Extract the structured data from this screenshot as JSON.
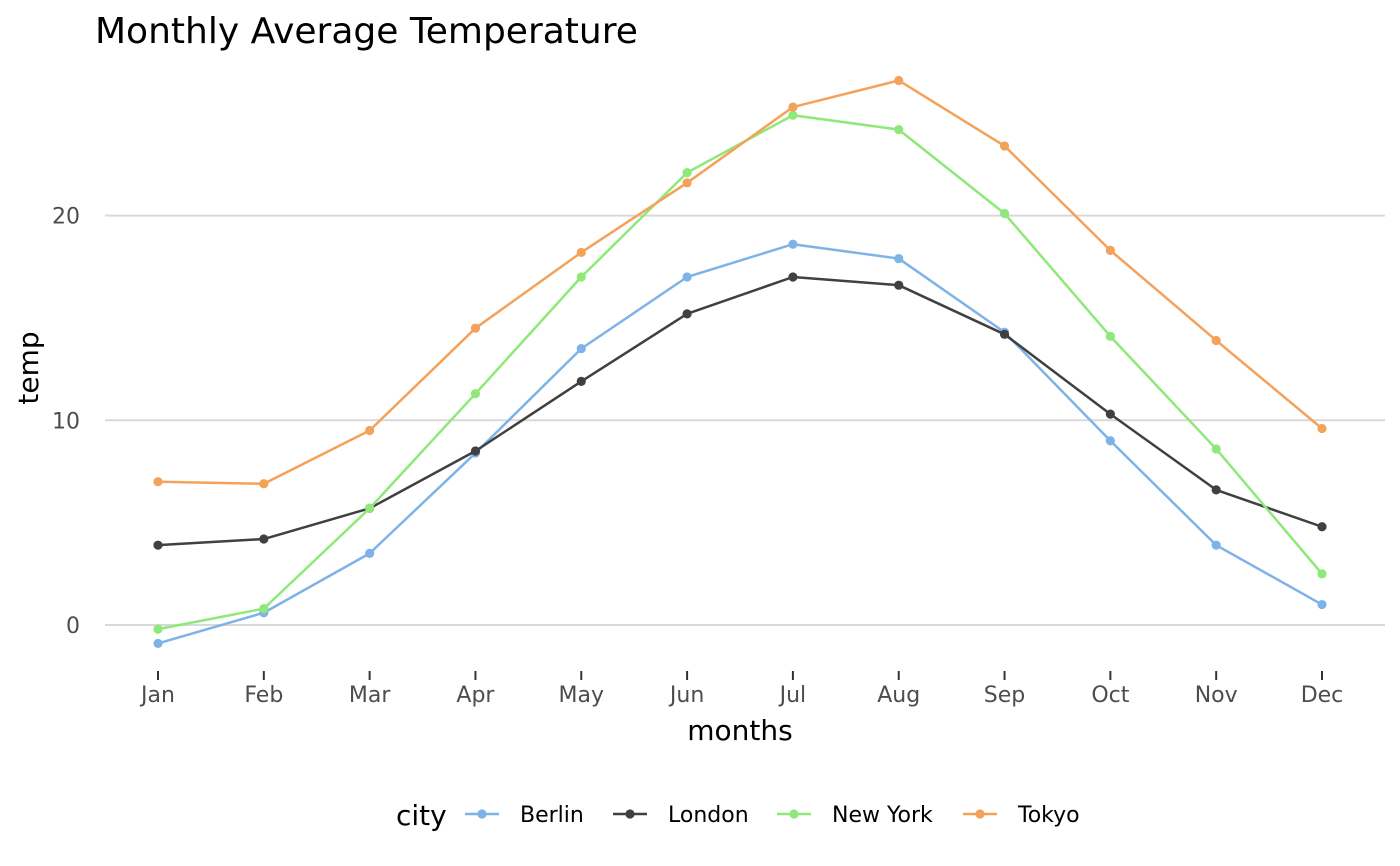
{
  "chart_data": {
    "type": "line",
    "title": "Monthly Average Temperature",
    "xlabel": "months",
    "ylabel": "temp",
    "categories": [
      "Jan",
      "Feb",
      "Mar",
      "Apr",
      "May",
      "Jun",
      "Jul",
      "Aug",
      "Sep",
      "Oct",
      "Nov",
      "Dec"
    ],
    "ylim": [
      -2.1,
      27.6
    ],
    "yticks": [
      0,
      10,
      20
    ],
    "grid": "horizontal-major",
    "legend": {
      "title": "city",
      "position": "bottom"
    },
    "series": [
      {
        "name": "Berlin",
        "color": "#7eb3e8",
        "values": [
          -0.9,
          0.6,
          3.5,
          8.4,
          13.5,
          17.0,
          18.6,
          17.9,
          14.3,
          9.0,
          3.9,
          1.0
        ]
      },
      {
        "name": "London",
        "color": "#404040",
        "values": [
          3.9,
          4.2,
          5.7,
          8.5,
          11.9,
          15.2,
          17.0,
          16.6,
          14.2,
          10.3,
          6.6,
          4.8
        ]
      },
      {
        "name": "New York",
        "color": "#8fe87a",
        "values": [
          -0.2,
          0.8,
          5.7,
          11.3,
          17.0,
          22.1,
          24.9,
          24.2,
          20.1,
          14.1,
          8.6,
          2.5
        ]
      },
      {
        "name": "Tokyo",
        "color": "#f4a259",
        "values": [
          7.0,
          6.9,
          9.5,
          14.5,
          18.2,
          21.6,
          25.3,
          26.6,
          23.4,
          18.3,
          13.9,
          9.6
        ]
      }
    ]
  }
}
